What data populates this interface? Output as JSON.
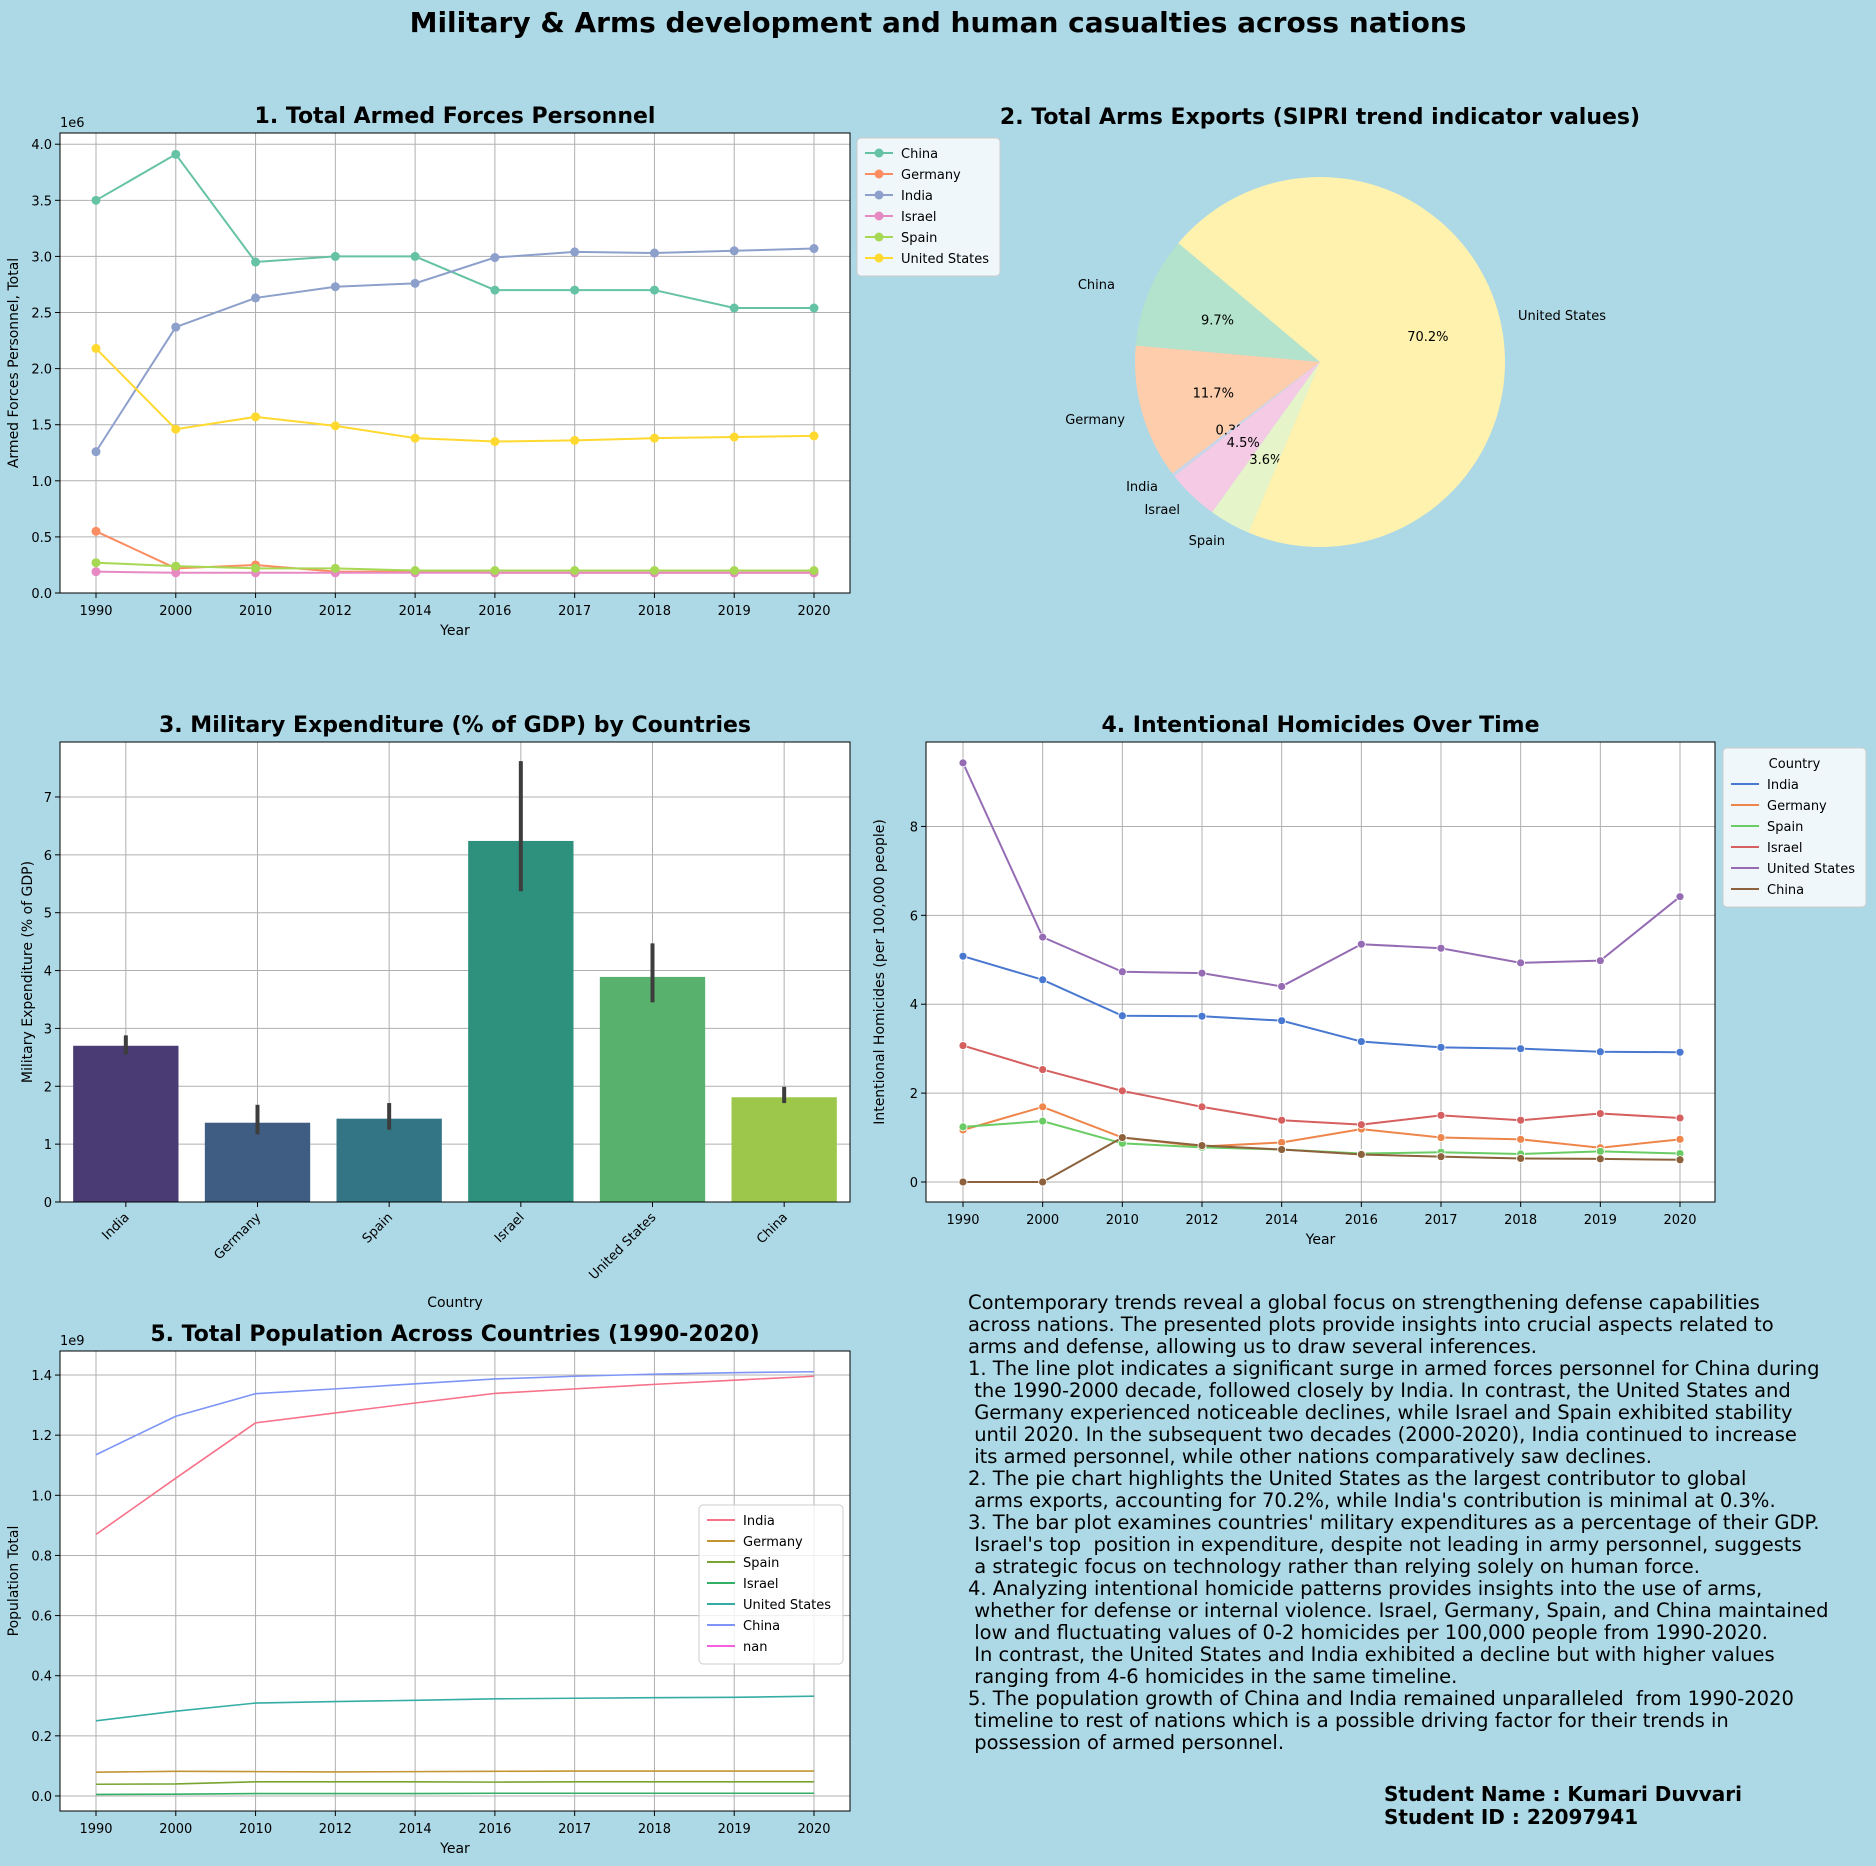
{
  "page": {
    "title": "Military & Arms development and human casualties across nations",
    "background": "#add8e6"
  },
  "years": [
    "1990",
    "2000",
    "2010",
    "2012",
    "2014",
    "2016",
    "2017",
    "2018",
    "2019",
    "2020"
  ],
  "chart_data": [
    {
      "id": "armed",
      "type": "line",
      "title": "1. Total Armed Forces Personnel",
      "xlabel": "Year",
      "ylabel": "Armed Forces Personnel, Total",
      "offset_text": "1e6",
      "ylim": [
        0,
        4.1
      ],
      "yticks": [
        "0.0",
        "0.5",
        "1.0",
        "1.5",
        "2.0",
        "2.5",
        "3.0",
        "3.5",
        "4.0"
      ],
      "grid": true,
      "legend_position": "outside-right",
      "series": [
        {
          "name": "China",
          "color": "#66c2a5",
          "values": [
            3.5,
            3.91,
            2.95,
            3.0,
            3.0,
            2.7,
            2.7,
            2.7,
            2.54,
            2.54
          ]
        },
        {
          "name": "Germany",
          "color": "#fc8d62",
          "values": [
            0.55,
            0.22,
            0.25,
            0.19,
            0.19,
            0.18,
            0.18,
            0.18,
            0.18,
            0.18
          ]
        },
        {
          "name": "India",
          "color": "#8da0cb",
          "values": [
            1.26,
            2.37,
            2.63,
            2.73,
            2.76,
            2.99,
            3.04,
            3.03,
            3.05,
            3.07
          ]
        },
        {
          "name": "Israel",
          "color": "#e78ac3",
          "values": [
            0.19,
            0.18,
            0.18,
            0.18,
            0.18,
            0.18,
            0.18,
            0.18,
            0.18,
            0.18
          ]
        },
        {
          "name": "Spain",
          "color": "#a6d854",
          "values": [
            0.27,
            0.24,
            0.22,
            0.22,
            0.2,
            0.2,
            0.2,
            0.2,
            0.2,
            0.2
          ]
        },
        {
          "name": "United States",
          "color": "#ffd92f",
          "values": [
            2.18,
            1.46,
            1.57,
            1.49,
            1.38,
            1.35,
            1.36,
            1.38,
            1.39,
            1.4
          ]
        }
      ]
    },
    {
      "id": "exports",
      "type": "pie",
      "title": "2. Total Arms Exports (SIPRI trend indicator values)",
      "slices": [
        {
          "name": "China",
          "pct": 9.7,
          "label": "9.7%",
          "color": "#b3e2cd"
        },
        {
          "name": "Germany",
          "pct": 11.7,
          "label": "11.7%",
          "color": "#fdcdac"
        },
        {
          "name": "India",
          "pct": 0.3,
          "label": "0.3%",
          "color": "#cbd5e8"
        },
        {
          "name": "Israel",
          "pct": 4.5,
          "label": "4.5%",
          "color": "#f4cae4"
        },
        {
          "name": "Spain",
          "pct": 3.6,
          "label": "3.6%",
          "color": "#e6f5c9"
        },
        {
          "name": "United States",
          "pct": 70.2,
          "label": "70.2%",
          "color": "#fff2ae"
        }
      ]
    },
    {
      "id": "expenditure",
      "type": "bar",
      "title": "3. Military Expenditure (% of GDP) by Countries",
      "xlabel": "Country",
      "ylabel": "Military Expenditure (% of GDP)",
      "ylim": [
        0,
        7.95
      ],
      "yticks": [
        "0",
        "1",
        "2",
        "3",
        "4",
        "5",
        "6",
        "7"
      ],
      "grid": true,
      "categories": [
        "India",
        "Germany",
        "Spain",
        "Israel",
        "United States",
        "China"
      ],
      "values": [
        2.7,
        1.37,
        1.44,
        6.24,
        3.89,
        1.81
      ],
      "error_low": [
        2.55,
        1.17,
        1.25,
        5.37,
        3.45,
        1.71
      ],
      "error_high": [
        2.88,
        1.68,
        1.71,
        7.62,
        4.47,
        1.99
      ],
      "colors": [
        "#4b3b74",
        "#3f5c82",
        "#337584",
        "#2e917e",
        "#58b26d",
        "#9cc74a"
      ]
    },
    {
      "id": "homicides",
      "type": "line",
      "title": "4. Intentional Homicides Over Time",
      "xlabel": "Year",
      "ylabel": "Intentional Homicides (per 100,000 people)",
      "ylim": [
        -0.45,
        9.9
      ],
      "yticks": [
        "0",
        "2",
        "4",
        "6",
        "8"
      ],
      "grid": true,
      "legend_title": "Country",
      "legend_position": "outside-right",
      "series": [
        {
          "name": "India",
          "color": "#4878d0",
          "values": [
            5.08,
            4.55,
            3.74,
            3.73,
            3.63,
            3.16,
            3.03,
            3.0,
            2.93,
            2.92
          ]
        },
        {
          "name": "Germany",
          "color": "#ee854a",
          "values": [
            1.17,
            1.69,
            1.0,
            0.8,
            0.89,
            1.19,
            1.0,
            0.96,
            0.77,
            0.96
          ]
        },
        {
          "name": "Spain",
          "color": "#6acc64",
          "values": [
            1.24,
            1.37,
            0.87,
            0.78,
            0.73,
            0.64,
            0.67,
            0.63,
            0.69,
            0.64
          ]
        },
        {
          "name": "Israel",
          "color": "#d65f5f",
          "values": [
            3.07,
            2.53,
            2.05,
            1.69,
            1.39,
            1.29,
            1.5,
            1.39,
            1.54,
            1.44
          ]
        },
        {
          "name": "United States",
          "color": "#956cb4",
          "values": [
            9.43,
            5.51,
            4.73,
            4.7,
            4.4,
            5.35,
            5.26,
            4.93,
            4.98,
            6.42
          ]
        },
        {
          "name": "China",
          "color": "#8c613c",
          "values": [
            0.0,
            0.0,
            1.0,
            0.82,
            0.73,
            0.62,
            0.57,
            0.53,
            0.52,
            0.5
          ]
        }
      ]
    },
    {
      "id": "population",
      "type": "line",
      "title": "5. Total Population Across Countries (1990-2020)",
      "xlabel": "Year",
      "ylabel": "Population Total",
      "offset_text": "1e9",
      "ylim": [
        -0.05,
        1.48
      ],
      "yticks": [
        "0.0",
        "0.2",
        "0.4",
        "0.6",
        "0.8",
        "1.0",
        "1.2",
        "1.4"
      ],
      "grid": true,
      "legend_position": "right",
      "series": [
        {
          "name": "India",
          "color": "#f77189",
          "values": [
            0.87,
            1.057,
            1.241,
            1.274,
            1.307,
            1.339,
            1.354,
            1.369,
            1.383,
            1.396
          ]
        },
        {
          "name": "Germany",
          "color": "#c39532",
          "values": [
            0.079,
            0.082,
            0.081,
            0.08,
            0.081,
            0.082,
            0.083,
            0.083,
            0.083,
            0.083
          ]
        },
        {
          "name": "Spain",
          "color": "#79a432",
          "values": [
            0.039,
            0.04,
            0.047,
            0.047,
            0.047,
            0.046,
            0.047,
            0.047,
            0.047,
            0.047
          ]
        },
        {
          "name": "Israel",
          "color": "#32b166",
          "values": [
            0.005,
            0.006,
            0.008,
            0.008,
            0.008,
            0.009,
            0.009,
            0.009,
            0.009,
            0.009
          ]
        },
        {
          "name": "United States",
          "color": "#36ada4",
          "values": [
            0.25,
            0.282,
            0.309,
            0.314,
            0.318,
            0.323,
            0.325,
            0.327,
            0.328,
            0.332
          ]
        },
        {
          "name": "China",
          "color": "#7e95f7",
          "values": [
            1.135,
            1.263,
            1.338,
            1.354,
            1.371,
            1.387,
            1.396,
            1.403,
            1.408,
            1.411
          ]
        },
        {
          "name": "nan",
          "color": "#f561dd",
          "values": []
        }
      ]
    }
  ],
  "notes": {
    "lines": [
      "Contemporary trends reveal a global focus on strengthening defense capabilities",
      "across nations. The presented plots provide insights into crucial aspects related to",
      "arms and defense, allowing us to draw several inferences.",
      "1. The line plot indicates a significant surge in armed forces personnel for China during",
      " the 1990-2000 decade, followed closely by India. In contrast, the United States and",
      " Germany experienced noticeable declines, while Israel and Spain exhibited stability",
      " until 2020. In the subsequent two decades (2000-2020), India continued to increase",
      " its armed personnel, while other nations comparatively saw declines.",
      "2. The pie chart highlights the United States as the largest contributor to global",
      " arms exports, accounting for 70.2%, while India's contribution is minimal at 0.3%.",
      "3. The bar plot examines countries' military expenditures as a percentage of their GDP.",
      " Israel's top  position in expenditure, despite not leading in army personnel, suggests",
      " a strategic focus on technology rather than relying solely on human force.",
      "4. Analyzing intentional homicide patterns provides insights into the use of arms,",
      " whether for defense or internal violence. Israel, Germany, Spain, and China maintained",
      " low and fluctuating values of 0-2 homicides per 100,000 people from 1990-2020.",
      " In contrast, the United States and India exhibited a decline but with higher values",
      " ranging from 4-6 homicides in the same timeline.",
      "5. The population growth of China and India remained unparalleled  from 1990-2020",
      " timeline to rest of nations which is a possible driving factor for their trends in",
      " possession of armed personnel."
    ],
    "student_name": "Student Name : Kumari Duvvari",
    "student_id": "Student ID : 22097941"
  }
}
